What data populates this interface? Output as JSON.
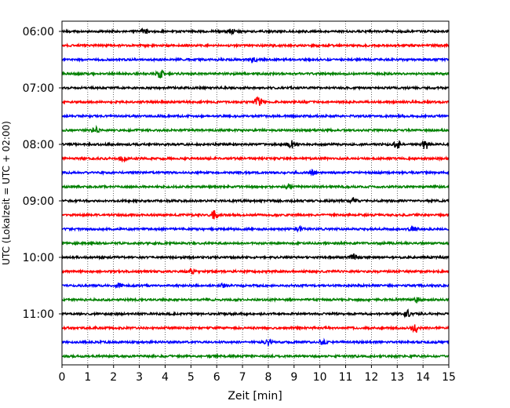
{
  "chart_data": {
    "type": "line",
    "xlabel": "Zeit  [min]",
    "ylabel": "UTC (Lokalzeit = UTC + 02:00)",
    "xlim": [
      0,
      15
    ],
    "x_ticks": [
      "0",
      "1",
      "2",
      "3",
      "4",
      "5",
      "6",
      "7",
      "8",
      "9",
      "10",
      "11",
      "12",
      "13",
      "14",
      "15"
    ],
    "y_ticks": [
      "06:00",
      "07:00",
      "08:00",
      "09:00",
      "10:00",
      "11:00"
    ],
    "grid": "vertical dotted lines at each minute",
    "trace_colors": [
      "#000000",
      "#ff0000",
      "#0000ff",
      "#008000"
    ],
    "series": [
      {
        "start": "06:00",
        "bursts": [
          {
            "x": 3.2,
            "amp": 0.25
          },
          {
            "x": 6.6,
            "amp": 0.25
          }
        ]
      },
      {
        "start": "06:15",
        "bursts": []
      },
      {
        "start": "06:30",
        "bursts": [
          {
            "x": 7.4,
            "amp": 0.25
          }
        ]
      },
      {
        "start": "06:45",
        "bursts": [
          {
            "x": 3.8,
            "amp": 0.45
          }
        ]
      },
      {
        "start": "07:00",
        "bursts": []
      },
      {
        "start": "07:15",
        "bursts": [
          {
            "x": 7.6,
            "amp": 0.45
          }
        ]
      },
      {
        "start": "07:30",
        "bursts": []
      },
      {
        "start": "07:45",
        "bursts": [
          {
            "x": 1.3,
            "amp": 0.25
          }
        ]
      },
      {
        "start": "08:00",
        "bursts": [
          {
            "x": 8.9,
            "amp": 0.35
          },
          {
            "x": 13.0,
            "amp": 0.35
          },
          {
            "x": 14.1,
            "amp": 0.45
          }
        ]
      },
      {
        "start": "08:15",
        "bursts": [
          {
            "x": 2.4,
            "amp": 0.25
          }
        ]
      },
      {
        "start": "08:30",
        "bursts": [
          {
            "x": 9.7,
            "amp": 0.25
          }
        ]
      },
      {
        "start": "08:45",
        "bursts": [
          {
            "x": 8.8,
            "amp": 0.25
          }
        ]
      },
      {
        "start": "09:00",
        "bursts": [
          {
            "x": 11.3,
            "amp": 0.25
          }
        ]
      },
      {
        "start": "09:15",
        "bursts": [
          {
            "x": 5.9,
            "amp": 0.4
          }
        ]
      },
      {
        "start": "09:30",
        "bursts": [
          {
            "x": 9.2,
            "amp": 0.25
          },
          {
            "x": 13.6,
            "amp": 0.25
          }
        ]
      },
      {
        "start": "09:45",
        "bursts": []
      },
      {
        "start": "10:00",
        "bursts": [
          {
            "x": 11.3,
            "amp": 0.35
          }
        ]
      },
      {
        "start": "10:15",
        "bursts": [
          {
            "x": 5.0,
            "amp": 0.25
          }
        ]
      },
      {
        "start": "10:30",
        "bursts": [
          {
            "x": 2.2,
            "amp": 0.2
          },
          {
            "x": 6.2,
            "amp": 0.2
          }
        ]
      },
      {
        "start": "10:45",
        "bursts": [
          {
            "x": 13.8,
            "amp": 0.25
          }
        ]
      },
      {
        "start": "11:00",
        "bursts": [
          {
            "x": 13.4,
            "amp": 0.3
          }
        ]
      },
      {
        "start": "11:15",
        "bursts": [
          {
            "x": 13.7,
            "amp": 0.4
          }
        ]
      },
      {
        "start": "11:30",
        "bursts": [
          {
            "x": 8.0,
            "amp": 0.25
          },
          {
            "x": 10.1,
            "amp": 0.25
          }
        ]
      },
      {
        "start": "11:45",
        "bursts": []
      }
    ]
  }
}
